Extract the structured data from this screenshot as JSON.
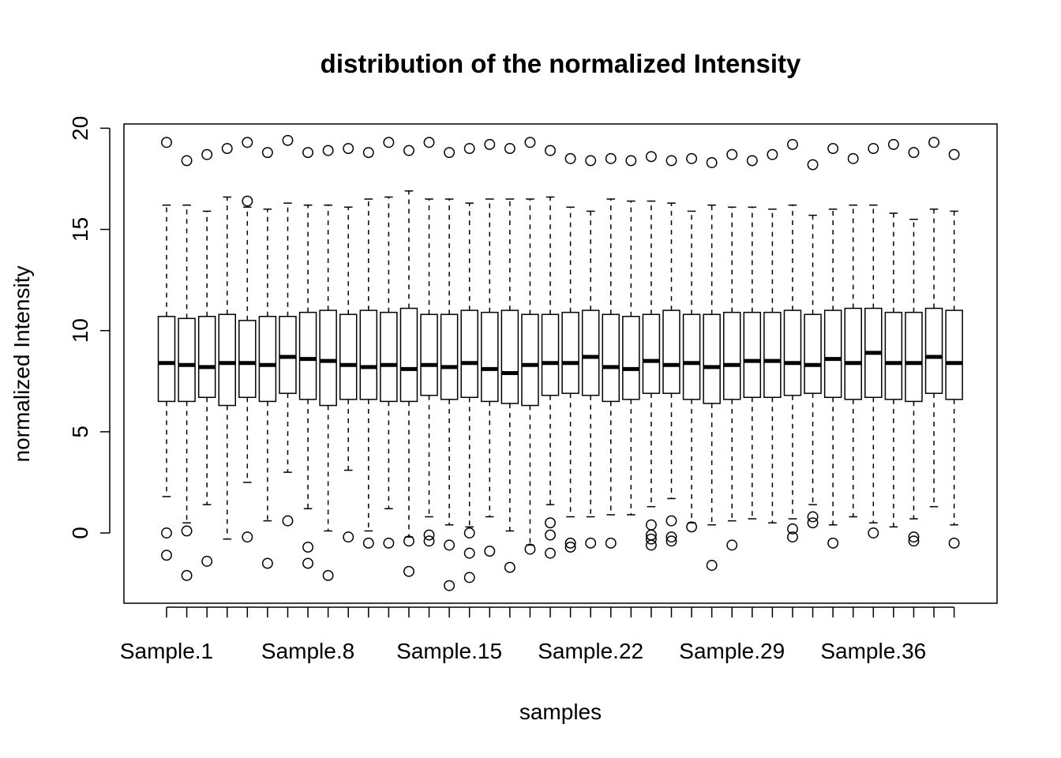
{
  "chart_data": {
    "type": "box",
    "title": "distribution of the normalized Intensity",
    "xlabel": "samples",
    "ylabel": "normalized Intensity",
    "ylim": [
      -3.5,
      20.2
    ],
    "yticks": [
      0,
      5,
      10,
      15,
      20
    ],
    "xtick_labels": [
      "Sample.1",
      "Sample.8",
      "Sample.15",
      "Sample.22",
      "Sample.29",
      "Sample.36"
    ],
    "xtick_label_positions": [
      1,
      8,
      15,
      22,
      29,
      36
    ],
    "grid": false,
    "boxes": [
      {
        "q1": 6.5,
        "median": 8.4,
        "q3": 10.7,
        "whisker_low": 1.8,
        "whisker_high": 16.2,
        "outliers": [
          19.3,
          0.0,
          -1.1
        ]
      },
      {
        "q1": 6.5,
        "median": 8.3,
        "q3": 10.6,
        "whisker_low": 0.5,
        "whisker_high": 16.2,
        "outliers": [
          18.4,
          0.1,
          -2.1
        ]
      },
      {
        "q1": 6.7,
        "median": 8.2,
        "q3": 10.7,
        "whisker_low": 1.4,
        "whisker_high": 15.9,
        "outliers": [
          18.7,
          -1.4
        ]
      },
      {
        "q1": 6.3,
        "median": 8.4,
        "q3": 10.8,
        "whisker_low": -0.3,
        "whisker_high": 16.6,
        "outliers": [
          19.0
        ]
      },
      {
        "q1": 6.7,
        "median": 8.4,
        "q3": 10.5,
        "whisker_low": 2.5,
        "whisker_high": 16.1,
        "outliers": [
          19.3,
          16.4,
          -0.2
        ]
      },
      {
        "q1": 6.5,
        "median": 8.3,
        "q3": 10.7,
        "whisker_low": 0.6,
        "whisker_high": 16.0,
        "outliers": [
          18.8,
          -1.5
        ]
      },
      {
        "q1": 6.9,
        "median": 8.7,
        "q3": 10.7,
        "whisker_low": 3.0,
        "whisker_high": 16.3,
        "outliers": [
          19.4,
          0.6
        ]
      },
      {
        "q1": 6.6,
        "median": 8.6,
        "q3": 10.9,
        "whisker_low": 1.2,
        "whisker_high": 16.2,
        "outliers": [
          18.8,
          -0.7,
          -1.5
        ]
      },
      {
        "q1": 6.3,
        "median": 8.5,
        "q3": 11.0,
        "whisker_low": 0.1,
        "whisker_high": 16.2,
        "outliers": [
          18.9,
          -2.1
        ]
      },
      {
        "q1": 6.6,
        "median": 8.3,
        "q3": 10.8,
        "whisker_low": 3.1,
        "whisker_high": 16.1,
        "outliers": [
          19.0,
          -0.2
        ]
      },
      {
        "q1": 6.6,
        "median": 8.2,
        "q3": 11.0,
        "whisker_low": 0.1,
        "whisker_high": 16.5,
        "outliers": [
          18.8,
          -0.5
        ]
      },
      {
        "q1": 6.5,
        "median": 8.3,
        "q3": 10.9,
        "whisker_low": 1.2,
        "whisker_high": 16.6,
        "outliers": [
          19.3,
          -0.5
        ]
      },
      {
        "q1": 6.5,
        "median": 8.1,
        "q3": 11.1,
        "whisker_low": -0.2,
        "whisker_high": 16.9,
        "outliers": [
          18.9,
          -0.4,
          -1.9
        ]
      },
      {
        "q1": 6.8,
        "median": 8.3,
        "q3": 10.8,
        "whisker_low": 0.8,
        "whisker_high": 16.5,
        "outliers": [
          19.3,
          -0.1,
          -0.4
        ]
      },
      {
        "q1": 6.6,
        "median": 8.2,
        "q3": 10.8,
        "whisker_low": 0.4,
        "whisker_high": 16.5,
        "outliers": [
          18.8,
          -0.6,
          -2.6
        ]
      },
      {
        "q1": 6.7,
        "median": 8.4,
        "q3": 11.0,
        "whisker_low": 0.3,
        "whisker_high": 16.3,
        "outliers": [
          19.0,
          0.0,
          -1.0,
          -2.2
        ]
      },
      {
        "q1": 6.5,
        "median": 8.1,
        "q3": 10.9,
        "whisker_low": 0.8,
        "whisker_high": 16.5,
        "outliers": [
          19.2,
          -0.9
        ]
      },
      {
        "q1": 6.4,
        "median": 7.9,
        "q3": 11.0,
        "whisker_low": 0.1,
        "whisker_high": 16.5,
        "outliers": [
          19.0,
          -1.7
        ]
      },
      {
        "q1": 6.3,
        "median": 8.3,
        "q3": 10.8,
        "whisker_low": -0.6,
        "whisker_high": 16.5,
        "outliers": [
          19.3,
          -0.8
        ]
      },
      {
        "q1": 6.8,
        "median": 8.4,
        "q3": 10.8,
        "whisker_low": 1.4,
        "whisker_high": 16.6,
        "outliers": [
          18.9,
          0.5,
          -0.1,
          -1.0
        ]
      },
      {
        "q1": 6.9,
        "median": 8.4,
        "q3": 10.9,
        "whisker_low": 0.8,
        "whisker_high": 16.1,
        "outliers": [
          18.5,
          -0.5,
          -0.7
        ]
      },
      {
        "q1": 6.8,
        "median": 8.7,
        "q3": 11.0,
        "whisker_low": 0.8,
        "whisker_high": 15.9,
        "outliers": [
          18.4,
          -0.5
        ]
      },
      {
        "q1": 6.5,
        "median": 8.2,
        "q3": 10.8,
        "whisker_low": 0.9,
        "whisker_high": 16.5,
        "outliers": [
          18.5,
          -0.5
        ]
      },
      {
        "q1": 6.6,
        "median": 8.1,
        "q3": 10.7,
        "whisker_low": 0.9,
        "whisker_high": 16.4,
        "outliers": [
          18.4
        ]
      },
      {
        "q1": 6.9,
        "median": 8.5,
        "q3": 10.8,
        "whisker_low": 1.3,
        "whisker_high": 16.4,
        "outliers": [
          18.6,
          0.4,
          -0.1,
          -0.3,
          -0.6
        ]
      },
      {
        "q1": 6.9,
        "median": 8.3,
        "q3": 11.0,
        "whisker_low": 1.7,
        "whisker_high": 16.3,
        "outliers": [
          18.4,
          0.6,
          -0.2,
          -0.4
        ]
      },
      {
        "q1": 6.6,
        "median": 8.4,
        "q3": 10.8,
        "whisker_low": 0.5,
        "whisker_high": 15.9,
        "outliers": [
          18.5,
          0.3
        ]
      },
      {
        "q1": 6.4,
        "median": 8.2,
        "q3": 10.8,
        "whisker_low": 0.4,
        "whisker_high": 16.2,
        "outliers": [
          18.3,
          -1.6
        ]
      },
      {
        "q1": 6.6,
        "median": 8.3,
        "q3": 10.9,
        "whisker_low": 0.6,
        "whisker_high": 16.1,
        "outliers": [
          18.7,
          -0.6
        ]
      },
      {
        "q1": 6.7,
        "median": 8.5,
        "q3": 10.9,
        "whisker_low": 0.7,
        "whisker_high": 16.1,
        "outliers": [
          18.4
        ]
      },
      {
        "q1": 6.7,
        "median": 8.5,
        "q3": 10.9,
        "whisker_low": 0.5,
        "whisker_high": 16.0,
        "outliers": [
          18.7
        ]
      },
      {
        "q1": 6.8,
        "median": 8.4,
        "q3": 11.0,
        "whisker_low": 0.7,
        "whisker_high": 16.2,
        "outliers": [
          19.2,
          0.2,
          -0.2
        ]
      },
      {
        "q1": 6.9,
        "median": 8.3,
        "q3": 10.8,
        "whisker_low": 1.4,
        "whisker_high": 15.7,
        "outliers": [
          18.2,
          0.8,
          0.5
        ]
      },
      {
        "q1": 6.7,
        "median": 8.6,
        "q3": 11.0,
        "whisker_low": 0.4,
        "whisker_high": 16.0,
        "outliers": [
          19.0,
          -0.5
        ]
      },
      {
        "q1": 6.6,
        "median": 8.4,
        "q3": 11.1,
        "whisker_low": 0.8,
        "whisker_high": 16.2,
        "outliers": [
          18.5
        ]
      },
      {
        "q1": 6.7,
        "median": 8.9,
        "q3": 11.1,
        "whisker_low": 0.5,
        "whisker_high": 16.2,
        "outliers": [
          19.0,
          0.0
        ]
      },
      {
        "q1": 6.6,
        "median": 8.4,
        "q3": 10.9,
        "whisker_low": 0.3,
        "whisker_high": 15.8,
        "outliers": [
          19.2
        ]
      },
      {
        "q1": 6.5,
        "median": 8.4,
        "q3": 10.9,
        "whisker_low": 0.7,
        "whisker_high": 15.5,
        "outliers": [
          18.8,
          -0.2,
          -0.4
        ]
      },
      {
        "q1": 6.9,
        "median": 8.7,
        "q3": 11.1,
        "whisker_low": 1.3,
        "whisker_high": 16.0,
        "outliers": [
          19.3
        ]
      },
      {
        "q1": 6.6,
        "median": 8.4,
        "q3": 11.0,
        "whisker_low": 0.4,
        "whisker_high": 15.9,
        "outliers": [
          18.7,
          -0.5
        ]
      }
    ]
  }
}
